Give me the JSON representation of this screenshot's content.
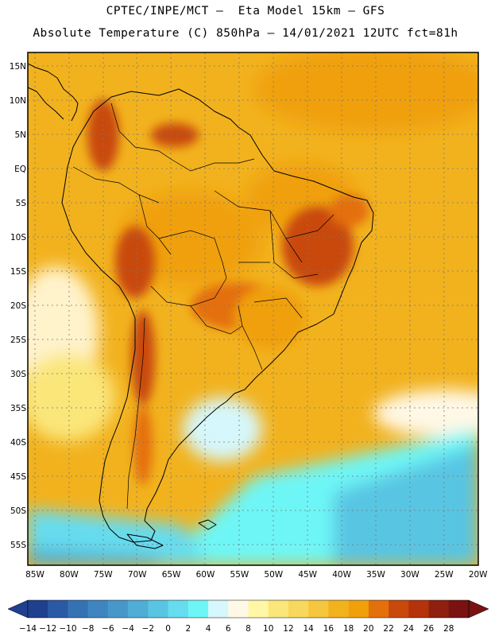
{
  "header": {
    "line1": "CPTEC/INPE/MCT –  Eta Model 15km – GFS",
    "line2": "Absolute Temperature (C) 850hPa – 14/01/2021 12UTC fct=81h"
  },
  "axes": {
    "lat_labels": [
      "15N",
      "10N",
      "5N",
      "EQ",
      "5S",
      "10S",
      "15S",
      "20S",
      "25S",
      "30S",
      "35S",
      "40S",
      "45S",
      "50S",
      "55S"
    ],
    "lon_labels": [
      "85W",
      "80W",
      "75W",
      "70W",
      "65W",
      "60W",
      "55W",
      "50W",
      "45W",
      "40W",
      "35W",
      "30W",
      "25W",
      "20W"
    ]
  },
  "colorbar": {
    "labels": [
      "-14",
      "-12",
      "-10",
      "-8",
      "-6",
      "-4",
      "-2",
      "0",
      "2",
      "4",
      "6",
      "8",
      "10",
      "12",
      "14",
      "16",
      "18",
      "20",
      "22",
      "24",
      "26",
      "28"
    ],
    "colors": [
      "#1f3f8f",
      "#2a5aa5",
      "#3572b4",
      "#3f86c0",
      "#4798c8",
      "#4fadd6",
      "#59c5e3",
      "#66dcef",
      "#6ef6f6",
      "#d6f7fb",
      "#fff8e6",
      "#fff7a6",
      "#fbe67a",
      "#f8d85c",
      "#f5c63e",
      "#f2b21e",
      "#f0a00a",
      "#e4700c",
      "#c9490c",
      "#b5330a",
      "#8f1f0e",
      "#7a1212"
    ]
  },
  "map": {
    "lat_range": [
      -58,
      17
    ],
    "lon_range": [
      -86,
      -20
    ]
  }
}
